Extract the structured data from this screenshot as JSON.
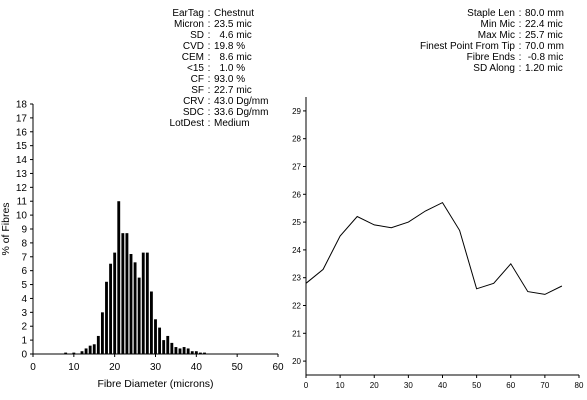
{
  "stats_left": [
    {
      "label": "EarTag",
      "value": "Chestnut"
    },
    {
      "label": "Micron",
      "value": "23.5 mic"
    },
    {
      "label": "SD",
      "value": "  4.6 mic"
    },
    {
      "label": "CVD",
      "value": "19.8 %"
    },
    {
      "label": "CEM",
      "value": "  8.6 mic"
    },
    {
      "label": "<15",
      "value": "  1.0 %"
    },
    {
      "label": "CF",
      "value": "93.0 %"
    },
    {
      "label": "SF",
      "value": "22.7 mic"
    },
    {
      "label": "CRV",
      "value": "43.0 Dg/mm"
    },
    {
      "label": "SDC",
      "value": "33.6 Dg/mm"
    },
    {
      "label": "LotDest",
      "value": "Medium"
    }
  ],
  "stats_right": [
    {
      "label": "Staple Len",
      "value": "80.0 mm"
    },
    {
      "label": "Min Mic",
      "value": "22.4 mic"
    },
    {
      "label": "Max Mic",
      "value": "25.7 mic"
    },
    {
      "label": "Finest Point From Tip",
      "value": "70.0 mm"
    },
    {
      "label": "Fibre Ends",
      "value": " -0.8 mic"
    },
    {
      "label": "SD Along",
      "value": "1.20 mic"
    }
  ],
  "chart_data": [
    {
      "type": "bar",
      "xlabel": "Fibre Diameter (microns)",
      "ylabel": "% of Fibres",
      "xlim": [
        0,
        60
      ],
      "ylim": [
        0,
        18
      ],
      "xticks": [
        0,
        10,
        20,
        30,
        40,
        50,
        60
      ],
      "yticks": [
        0,
        1,
        2,
        3,
        4,
        5,
        6,
        7,
        8,
        9,
        10,
        11,
        12,
        13,
        14,
        15,
        16,
        17,
        18
      ],
      "x": [
        8,
        10,
        12,
        13,
        14,
        15,
        16,
        17,
        18,
        19,
        20,
        21,
        22,
        23,
        24,
        25,
        26,
        27,
        28,
        29,
        30,
        31,
        32,
        33,
        34,
        35,
        36,
        37,
        38,
        39,
        40,
        41,
        42
      ],
      "values": [
        0.1,
        0.1,
        0.2,
        0.4,
        0.6,
        0.7,
        1.3,
        3.0,
        5.2,
        6.5,
        7.3,
        11.0,
        8.7,
        8.7,
        7.2,
        6.6,
        5.5,
        7.3,
        7.3,
        4.5,
        2.5,
        1.9,
        1.0,
        1.3,
        0.8,
        0.5,
        0.4,
        0.5,
        0.4,
        0.2,
        0.2,
        0.1,
        0.1
      ],
      "grid": false
    },
    {
      "type": "line",
      "xlim": [
        0,
        80
      ],
      "ylim": [
        19.5,
        29.5
      ],
      "xticks": [
        0,
        10,
        20,
        30,
        40,
        50,
        60,
        70,
        80
      ],
      "yticks": [
        20,
        21,
        22,
        23,
        24,
        25,
        26,
        27,
        28,
        29
      ],
      "x": [
        0,
        5,
        10,
        15,
        20,
        25,
        30,
        35,
        40,
        45,
        50,
        55,
        60,
        65,
        70,
        75
      ],
      "values": [
        22.8,
        23.3,
        24.5,
        25.2,
        24.9,
        24.8,
        25.0,
        25.4,
        25.7,
        24.7,
        22.6,
        22.8,
        23.5,
        22.5,
        22.4,
        22.7
      ],
      "grid": false
    }
  ]
}
